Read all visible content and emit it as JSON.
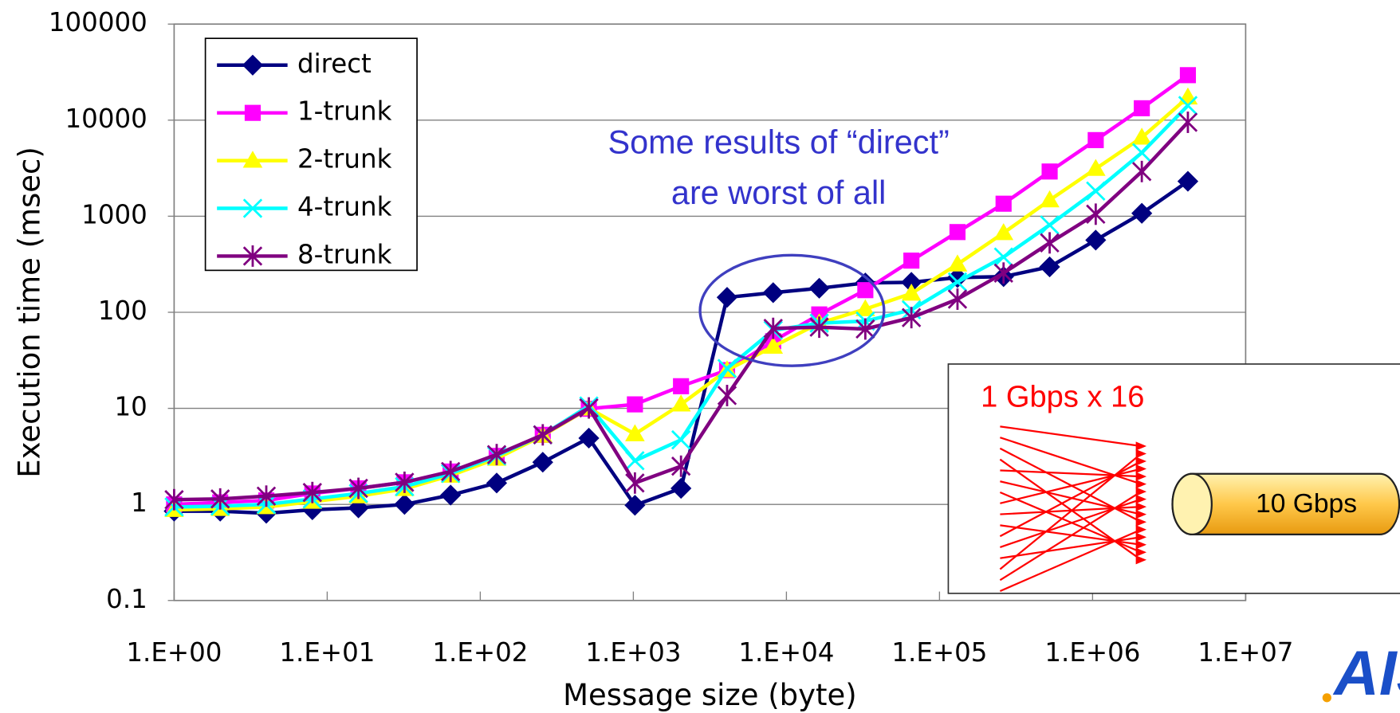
{
  "chart_data": {
    "type": "line",
    "x_label": "Message size (byte)",
    "y_label": "Execution time (msec)",
    "x": [
      1,
      2,
      4,
      8,
      16,
      32,
      64,
      128,
      256,
      512,
      1024,
      2048,
      4096,
      8192,
      16384,
      32768,
      65536,
      131072,
      262144,
      524288,
      1048576,
      2097152,
      4194304
    ],
    "series": [
      {
        "name": "direct",
        "color": "#000080",
        "marker": "diamond",
        "values": [
          0.85,
          0.85,
          0.81,
          0.88,
          0.92,
          1.0,
          1.25,
          1.67,
          2.75,
          4.9,
          0.98,
          1.47,
          143,
          160,
          178,
          202,
          205,
          230,
          235,
          297,
          564,
          1072,
          2310
        ]
      },
      {
        "name": "1-trunk",
        "color": "#ff00ff",
        "marker": "square",
        "values": [
          1.0,
          1.05,
          1.1,
          1.3,
          1.47,
          1.7,
          2.2,
          3.2,
          5.3,
          9.9,
          11,
          17,
          25,
          50,
          95,
          170,
          345,
          684,
          1350,
          2920,
          6200,
          13300,
          29400
        ]
      },
      {
        "name": "2-trunk",
        "color": "#ffff00",
        "marker": "triangle",
        "values": [
          0.88,
          0.9,
          0.94,
          1.07,
          1.22,
          1.45,
          2.0,
          3.0,
          5.2,
          10,
          5.4,
          11,
          25,
          44,
          77,
          108,
          157,
          316,
          670,
          1470,
          3120,
          6600,
          17300
        ]
      },
      {
        "name": "4-trunk",
        "color": "#00ffff",
        "marker": "x",
        "values": [
          0.94,
          0.96,
          1.0,
          1.14,
          1.3,
          1.53,
          2.1,
          3.2,
          5.3,
          10.6,
          2.85,
          4.7,
          26,
          65,
          77,
          81,
          106,
          207,
          376,
          811,
          1830,
          4580,
          14200
        ]
      },
      {
        "name": "8-trunk",
        "color": "#800080",
        "marker": "star",
        "values": [
          1.12,
          1.14,
          1.22,
          1.33,
          1.47,
          1.7,
          2.2,
          3.3,
          5.3,
          10.1,
          1.67,
          2.5,
          13.6,
          68,
          70,
          67,
          88,
          137,
          256,
          528,
          1050,
          2920,
          9500
        ]
      }
    ],
    "xlim": [
      1,
      10000000
    ],
    "xticks": [
      {
        "value": 1,
        "label": "1.E+00"
      },
      {
        "value": 10,
        "label": "1.E+01"
      },
      {
        "value": 100,
        "label": "1.E+02"
      },
      {
        "value": 1000,
        "label": "1.E+03"
      },
      {
        "value": 10000,
        "label": "1.E+04"
      },
      {
        "value": 100000,
        "label": "1.E+05"
      },
      {
        "value": 1000000,
        "label": "1.E+06"
      },
      {
        "value": 10000000,
        "label": "1.E+07"
      }
    ],
    "ylim": [
      0.1,
      100000
    ],
    "yticks": [
      0.1,
      1,
      10,
      100,
      1000,
      10000,
      100000
    ],
    "x_log": true,
    "y_log": true,
    "grid": true,
    "legend": "upper left",
    "annotation": [
      "Some results of “direct”",
      "are worst of all"
    ],
    "inset": {
      "input_label": "1 Gbps x 16",
      "output_label": "10 Gbps"
    },
    "logo": "AIST"
  }
}
